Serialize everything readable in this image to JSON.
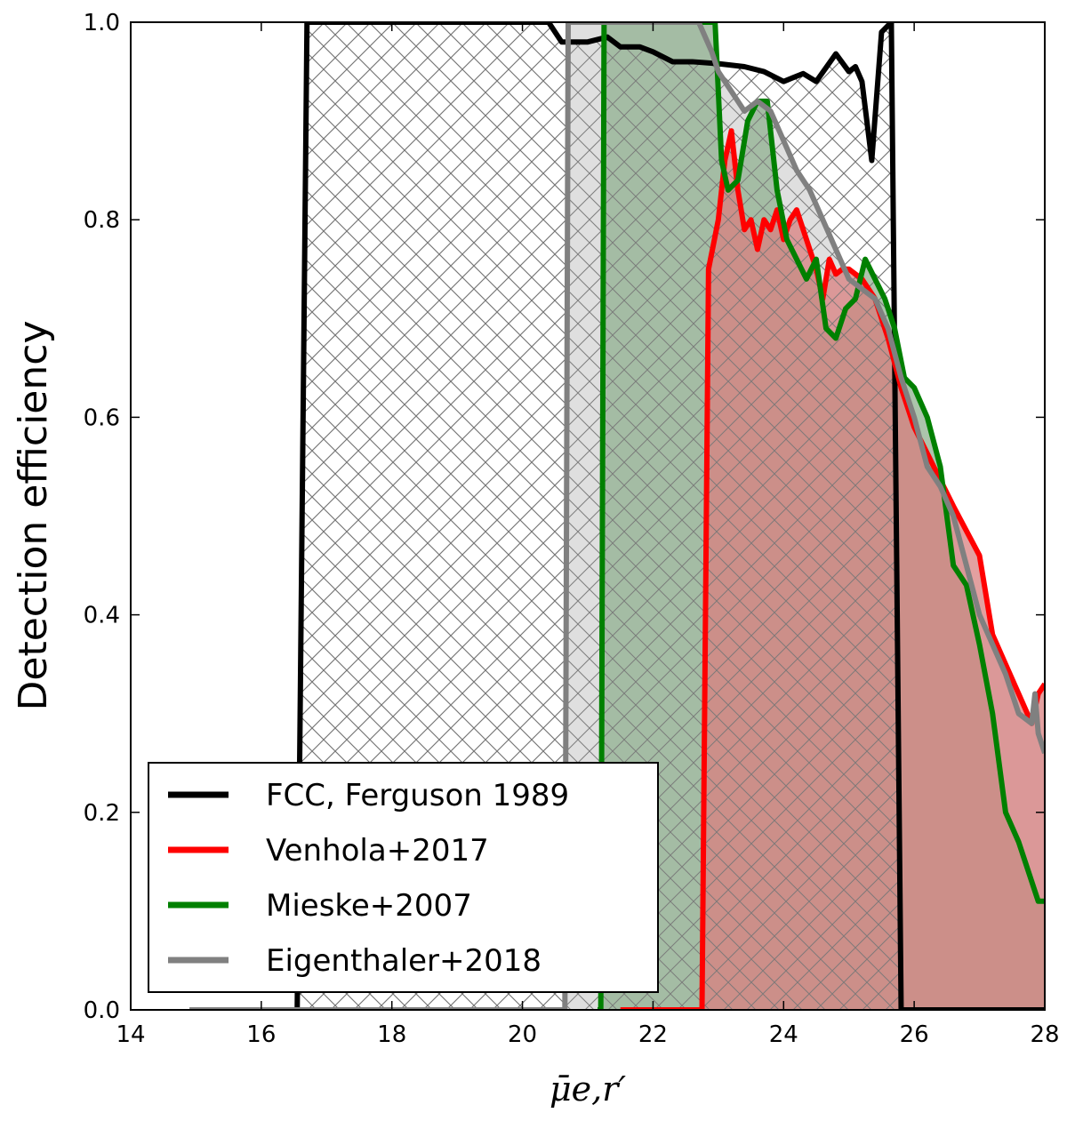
{
  "chart_data": {
    "type": "line",
    "title": "",
    "xlabel": "μ̄e,r′",
    "ylabel": "Detection efficiency",
    "xlim": [
      14,
      28
    ],
    "ylim": [
      0,
      1.0
    ],
    "x_ticks": [
      "14",
      "16",
      "18",
      "20",
      "22",
      "24",
      "26",
      "28"
    ],
    "y_ticks": [
      "0.0",
      "0.2",
      "0.4",
      "0.6",
      "0.8",
      "1.0"
    ],
    "grid": false,
    "legend_position": "bottom-left",
    "series": [
      {
        "name": "FCC, Ferguson 1989",
        "color": "#000000",
        "fill": "hatch",
        "points": [
          [
            16.5,
            0.0
          ],
          [
            16.55,
            0.0
          ],
          [
            16.7,
            1.0
          ],
          [
            20.4,
            1.0
          ],
          [
            20.6,
            0.98
          ],
          [
            21.0,
            0.98
          ],
          [
            21.3,
            0.985
          ],
          [
            21.5,
            0.975
          ],
          [
            21.8,
            0.975
          ],
          [
            22.0,
            0.97
          ],
          [
            22.3,
            0.96
          ],
          [
            22.6,
            0.96
          ],
          [
            23.0,
            0.958
          ],
          [
            23.4,
            0.955
          ],
          [
            23.7,
            0.95
          ],
          [
            24.0,
            0.94
          ],
          [
            24.3,
            0.948
          ],
          [
            24.5,
            0.94
          ],
          [
            24.8,
            0.968
          ],
          [
            25.0,
            0.95
          ],
          [
            25.1,
            0.955
          ],
          [
            25.2,
            0.94
          ],
          [
            25.35,
            0.86
          ],
          [
            25.5,
            0.99
          ],
          [
            25.65,
            1.0
          ],
          [
            25.8,
            0.0
          ],
          [
            28.0,
            0.0
          ]
        ]
      },
      {
        "name": "Venhola+2017",
        "color": "#ff0000",
        "fill": "#d98080",
        "points": [
          [
            21.5,
            0.0
          ],
          [
            22.75,
            0.0
          ],
          [
            22.85,
            0.75
          ],
          [
            23.0,
            0.8
          ],
          [
            23.1,
            0.86
          ],
          [
            23.2,
            0.89
          ],
          [
            23.3,
            0.83
          ],
          [
            23.4,
            0.79
          ],
          [
            23.5,
            0.8
          ],
          [
            23.6,
            0.77
          ],
          [
            23.7,
            0.8
          ],
          [
            23.8,
            0.79
          ],
          [
            23.9,
            0.81
          ],
          [
            24.0,
            0.78
          ],
          [
            24.1,
            0.8
          ],
          [
            24.2,
            0.81
          ],
          [
            24.3,
            0.79
          ],
          [
            24.4,
            0.77
          ],
          [
            24.5,
            0.75
          ],
          [
            24.6,
            0.72
          ],
          [
            24.7,
            0.76
          ],
          [
            24.8,
            0.745
          ],
          [
            24.9,
            0.75
          ],
          [
            25.0,
            0.75
          ],
          [
            25.2,
            0.74
          ],
          [
            25.4,
            0.72
          ],
          [
            25.6,
            0.68
          ],
          [
            25.8,
            0.63
          ],
          [
            26.0,
            0.59
          ],
          [
            26.3,
            0.55
          ],
          [
            26.6,
            0.51
          ],
          [
            27.0,
            0.46
          ],
          [
            27.2,
            0.38
          ],
          [
            27.4,
            0.35
          ],
          [
            27.6,
            0.32
          ],
          [
            27.8,
            0.29
          ],
          [
            27.9,
            0.32
          ],
          [
            28.0,
            0.33
          ]
        ]
      },
      {
        "name": "Mieske+2007",
        "color": "#008000",
        "fill": "#90b090",
        "points": [
          [
            21.15,
            0.0
          ],
          [
            21.2,
            0.0
          ],
          [
            21.25,
            1.0
          ],
          [
            22.95,
            1.0
          ],
          [
            23.05,
            0.86
          ],
          [
            23.15,
            0.83
          ],
          [
            23.3,
            0.84
          ],
          [
            23.45,
            0.9
          ],
          [
            23.6,
            0.92
          ],
          [
            23.75,
            0.92
          ],
          [
            23.9,
            0.83
          ],
          [
            24.05,
            0.78
          ],
          [
            24.2,
            0.76
          ],
          [
            24.35,
            0.74
          ],
          [
            24.5,
            0.76
          ],
          [
            24.65,
            0.69
          ],
          [
            24.8,
            0.68
          ],
          [
            24.95,
            0.71
          ],
          [
            25.1,
            0.72
          ],
          [
            25.25,
            0.76
          ],
          [
            25.4,
            0.74
          ],
          [
            25.55,
            0.72
          ],
          [
            25.7,
            0.69
          ],
          [
            25.85,
            0.64
          ],
          [
            26.0,
            0.63
          ],
          [
            26.2,
            0.6
          ],
          [
            26.4,
            0.55
          ],
          [
            26.6,
            0.45
          ],
          [
            26.8,
            0.43
          ],
          [
            27.0,
            0.37
          ],
          [
            27.2,
            0.3
          ],
          [
            27.4,
            0.2
          ],
          [
            27.6,
            0.17
          ],
          [
            27.8,
            0.13
          ],
          [
            27.9,
            0.11
          ],
          [
            28.0,
            0.11
          ]
        ]
      },
      {
        "name": "Eigenthaler+2018",
        "color": "#808080",
        "fill": "#d9d9d9",
        "points": [
          [
            14.9,
            0.0
          ],
          [
            20.65,
            0.0
          ],
          [
            20.7,
            1.0
          ],
          [
            22.7,
            1.0
          ],
          [
            22.9,
            0.97
          ],
          [
            23.0,
            0.95
          ],
          [
            23.2,
            0.93
          ],
          [
            23.4,
            0.91
          ],
          [
            23.6,
            0.92
          ],
          [
            23.8,
            0.91
          ],
          [
            24.0,
            0.88
          ],
          [
            24.2,
            0.85
          ],
          [
            24.4,
            0.83
          ],
          [
            24.6,
            0.8
          ],
          [
            24.8,
            0.77
          ],
          [
            25.0,
            0.74
          ],
          [
            25.2,
            0.73
          ],
          [
            25.4,
            0.72
          ],
          [
            25.6,
            0.69
          ],
          [
            25.8,
            0.64
          ],
          [
            26.0,
            0.6
          ],
          [
            26.2,
            0.55
          ],
          [
            26.4,
            0.53
          ],
          [
            26.6,
            0.5
          ],
          [
            26.8,
            0.45
          ],
          [
            27.0,
            0.4
          ],
          [
            27.2,
            0.37
          ],
          [
            27.4,
            0.34
          ],
          [
            27.6,
            0.3
          ],
          [
            27.8,
            0.29
          ],
          [
            27.85,
            0.32
          ],
          [
            27.9,
            0.28
          ],
          [
            28.0,
            0.26
          ]
        ]
      }
    ]
  }
}
